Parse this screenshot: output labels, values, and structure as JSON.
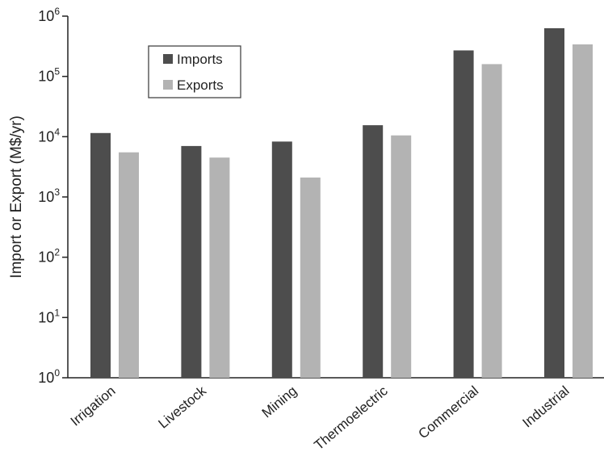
{
  "chart_data": {
    "type": "bar",
    "title": "",
    "xlabel": "",
    "ylabel": "Import or Export (M$/yr)",
    "yscale": "log",
    "ylim": [
      1,
      1000000
    ],
    "ytick_base": "10",
    "ytick_exponents": [
      "0",
      "1",
      "2",
      "3",
      "4",
      "5",
      "6"
    ],
    "grid": false,
    "legend_position": "top-left",
    "categories": [
      "Irrigation",
      "Livestock",
      "Mining",
      "Thermoelectric",
      "Commercial",
      "Industrial"
    ],
    "series": [
      {
        "name": "Imports",
        "color": "#4d4d4d",
        "values": [
          11500,
          7000,
          8300,
          15500,
          270000,
          630000
        ]
      },
      {
        "name": "Exports",
        "color": "#b3b3b3",
        "values": [
          5500,
          4500,
          2100,
          10500,
          160000,
          340000
        ]
      }
    ]
  }
}
